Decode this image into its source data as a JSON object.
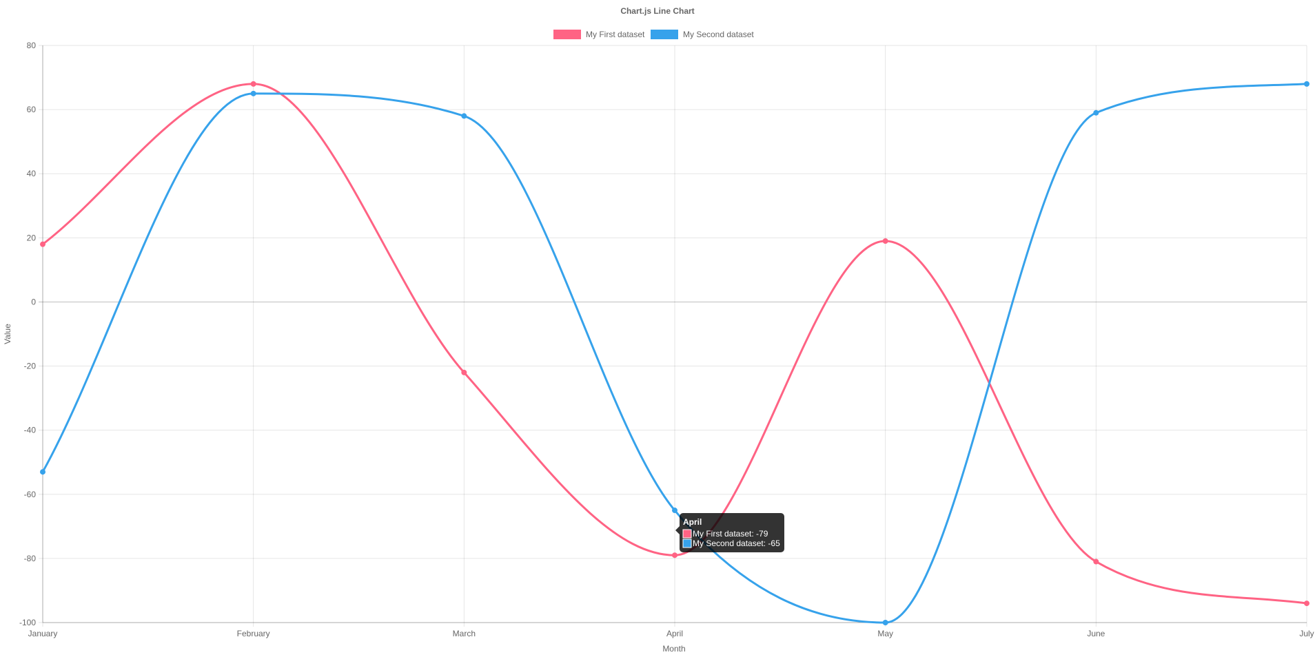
{
  "chart_data": {
    "type": "line",
    "title": "Chart.js Line Chart",
    "xlabel": "Month",
    "ylabel": "Value",
    "categories": [
      "January",
      "February",
      "March",
      "April",
      "May",
      "June",
      "July"
    ],
    "ylim": [
      -100,
      80
    ],
    "yticks": [
      80,
      60,
      40,
      20,
      0,
      -20,
      -40,
      -60,
      -80,
      -100
    ],
    "grid": true,
    "legend_position": "top",
    "series": [
      {
        "name": "My First dataset",
        "color": "#ff6384",
        "values": [
          18,
          68,
          -22,
          -79,
          19,
          -81,
          -94
        ]
      },
      {
        "name": "My Second dataset",
        "color": "#36a2eb",
        "values": [
          -53,
          65,
          58,
          -65,
          -100,
          59,
          68
        ]
      }
    ],
    "tooltip": {
      "title": "April",
      "lines": [
        "My First dataset: -79",
        "My Second dataset: -65"
      ]
    }
  }
}
